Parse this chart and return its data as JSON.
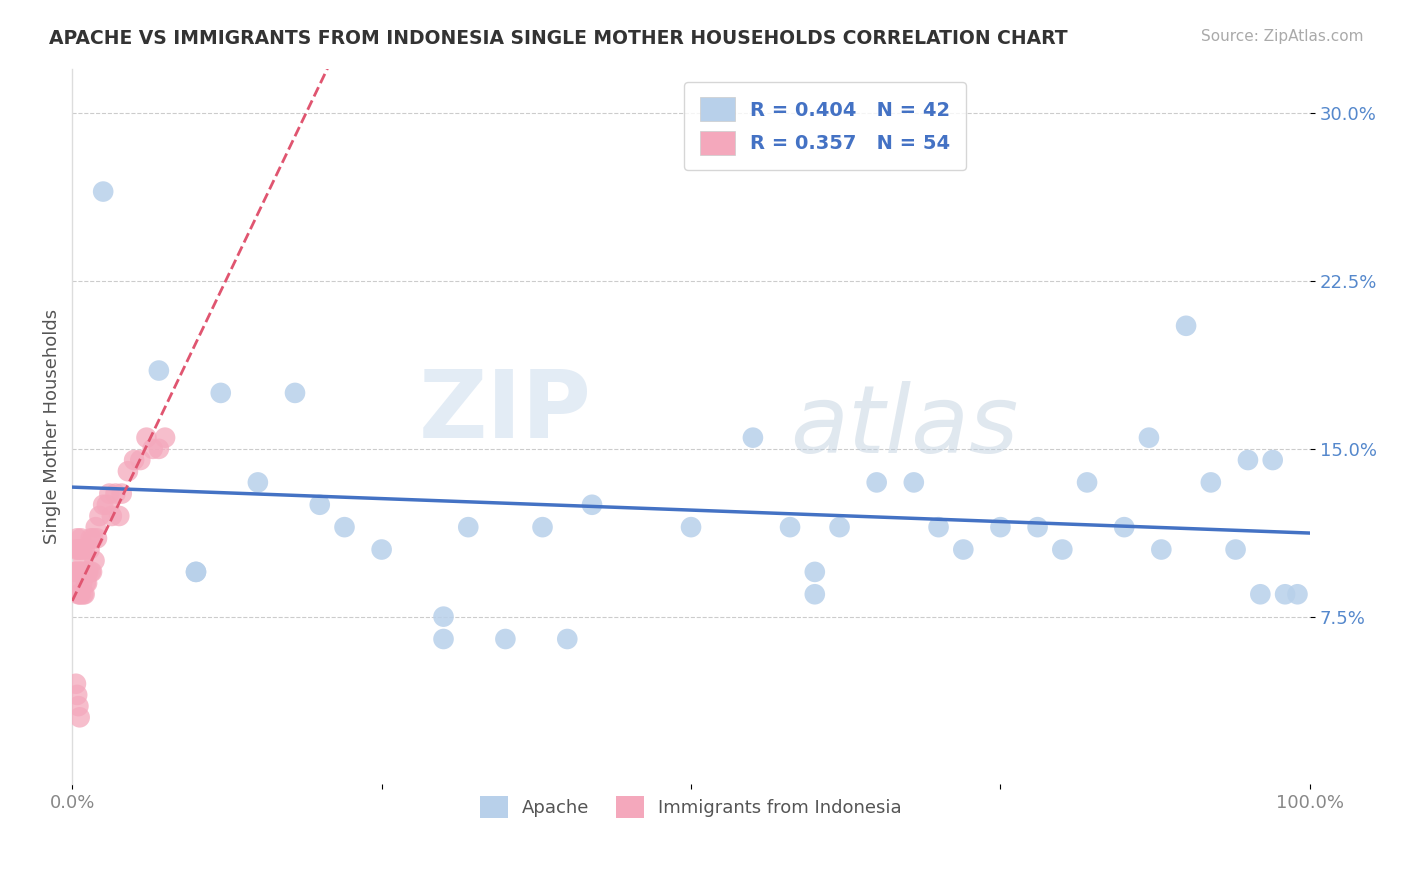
{
  "title": "APACHE VS IMMIGRANTS FROM INDONESIA SINGLE MOTHER HOUSEHOLDS CORRELATION CHART",
  "source": "Source: ZipAtlas.com",
  "ylabel": "Single Mother Households",
  "xlim": [
    0.0,
    1.0
  ],
  "ylim": [
    0.0,
    0.32
  ],
  "xtick_positions": [
    0.0,
    0.25,
    0.5,
    0.75,
    1.0
  ],
  "xticklabels": [
    "0.0%",
    "",
    "",
    "",
    "100.0%"
  ],
  "ytick_positions": [
    0.075,
    0.15,
    0.225,
    0.3
  ],
  "yticklabels": [
    "7.5%",
    "15.0%",
    "22.5%",
    "30.0%"
  ],
  "legend_r1": "R = 0.404",
  "legend_n1": "N = 42",
  "legend_r2": "R = 0.357",
  "legend_n2": "N = 54",
  "color_apache": "#b8d0ea",
  "color_indonesia": "#f4a8bc",
  "line_color_apache": "#4472c4",
  "line_color_indonesia": "#e05570",
  "watermark_zip": "ZIP",
  "watermark_atlas": "atlas",
  "background_color": "#ffffff",
  "apache_x": [
    0.025,
    0.07,
    0.1,
    0.12,
    0.15,
    0.18,
    0.2,
    0.22,
    0.25,
    0.3,
    0.32,
    0.35,
    0.38,
    0.4,
    0.42,
    0.5,
    0.55,
    0.58,
    0.6,
    0.62,
    0.65,
    0.68,
    0.7,
    0.72,
    0.75,
    0.78,
    0.8,
    0.82,
    0.85,
    0.87,
    0.88,
    0.9,
    0.92,
    0.94,
    0.95,
    0.96,
    0.97,
    0.98,
    0.99,
    0.6,
    0.1,
    0.3
  ],
  "apache_y": [
    0.265,
    0.185,
    0.095,
    0.175,
    0.135,
    0.175,
    0.125,
    0.115,
    0.105,
    0.065,
    0.115,
    0.065,
    0.115,
    0.065,
    0.125,
    0.115,
    0.155,
    0.115,
    0.095,
    0.115,
    0.135,
    0.135,
    0.115,
    0.105,
    0.115,
    0.115,
    0.105,
    0.135,
    0.115,
    0.155,
    0.105,
    0.205,
    0.135,
    0.105,
    0.145,
    0.085,
    0.145,
    0.085,
    0.085,
    0.085,
    0.095,
    0.075
  ],
  "indonesia_x": [
    0.002,
    0.003,
    0.003,
    0.004,
    0.004,
    0.005,
    0.005,
    0.005,
    0.006,
    0.006,
    0.006,
    0.007,
    0.007,
    0.007,
    0.008,
    0.008,
    0.008,
    0.009,
    0.009,
    0.01,
    0.01,
    0.01,
    0.011,
    0.011,
    0.012,
    0.012,
    0.013,
    0.014,
    0.015,
    0.015,
    0.016,
    0.017,
    0.018,
    0.019,
    0.02,
    0.022,
    0.025,
    0.028,
    0.03,
    0.032,
    0.035,
    0.038,
    0.04,
    0.045,
    0.05,
    0.055,
    0.06,
    0.065,
    0.07,
    0.075,
    0.003,
    0.004,
    0.005,
    0.006
  ],
  "indonesia_y": [
    0.095,
    0.095,
    0.105,
    0.09,
    0.11,
    0.085,
    0.095,
    0.105,
    0.085,
    0.095,
    0.105,
    0.085,
    0.095,
    0.11,
    0.09,
    0.095,
    0.105,
    0.085,
    0.1,
    0.095,
    0.085,
    0.105,
    0.09,
    0.095,
    0.09,
    0.095,
    0.095,
    0.105,
    0.095,
    0.11,
    0.095,
    0.11,
    0.1,
    0.115,
    0.11,
    0.12,
    0.125,
    0.125,
    0.13,
    0.12,
    0.13,
    0.12,
    0.13,
    0.14,
    0.145,
    0.145,
    0.155,
    0.15,
    0.15,
    0.155,
    0.045,
    0.04,
    0.035,
    0.03
  ]
}
